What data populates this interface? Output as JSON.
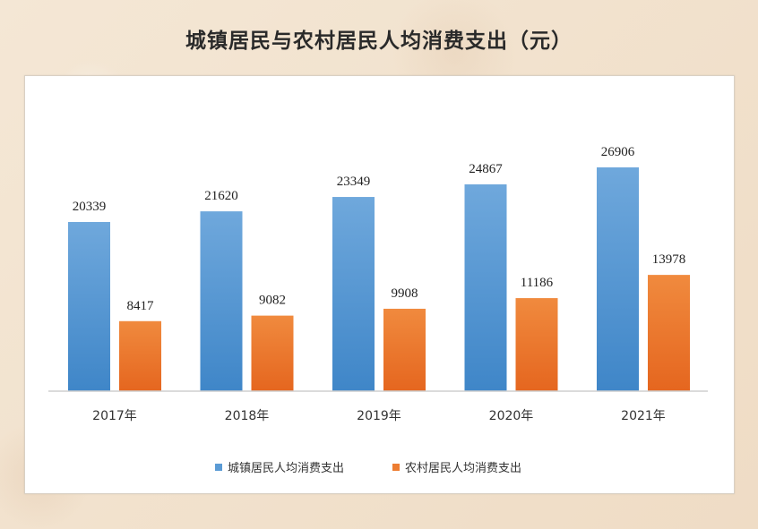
{
  "chart_data": {
    "type": "bar",
    "title": "城镇居民与农村居民人均消费支出（元）",
    "categories": [
      "2017年",
      "2018年",
      "2019年",
      "2020年",
      "2021年"
    ],
    "series": [
      {
        "name": "城镇居民人均消费支出",
        "values": [
          20339,
          21620,
          23349,
          24867,
          26906
        ],
        "color": "#5b9bd5"
      },
      {
        "name": "农村居民人均消费支出",
        "values": [
          8417,
          9082,
          9908,
          11186,
          13978
        ],
        "color": "#ed7d31"
      }
    ],
    "ylim": [
      0,
      30000
    ],
    "legend": "bottom",
    "grid": false
  }
}
